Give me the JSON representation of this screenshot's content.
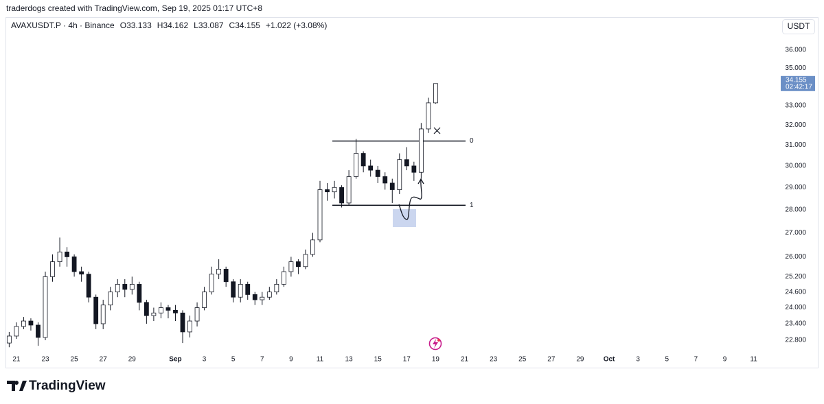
{
  "header": {
    "credit": "traderdogs created with TradingView.com, Sep 19, 2025 01:17 UTC+8",
    "brand": "TradingView"
  },
  "chart_data": {
    "type": "candlestick",
    "symbol": "AVAXUSDT.P · 4h · Binance",
    "open_label": "O",
    "high_label": "H",
    "low_label": "L",
    "close_label": "C",
    "change": "+1.022 (+3.08%)",
    "currency": "USDT",
    "countdown": "02:42:17",
    "up_color": "#ffffff",
    "down_color": "#131722",
    "wick_color": "#131722",
    "last_price_color": "#6b8fc6",
    "log_scale": true,
    "x": [
      -0.5,
      0,
      0.5,
      1,
      1.5,
      2,
      2.5,
      3,
      3.5,
      4,
      4.5,
      5,
      5.5,
      6,
      6.5,
      7,
      7.5,
      8,
      8.5,
      9,
      9.5,
      10,
      10.5,
      11,
      11.5,
      12,
      12.5,
      13,
      13.5,
      14,
      14.5,
      15,
      15.5,
      16,
      16.5,
      17,
      17.5,
      18,
      18.5,
      19,
      19.5,
      20,
      20.5,
      21,
      21.5,
      22,
      22.5,
      23,
      23.5,
      24,
      24.5,
      25,
      25.5,
      26,
      26.5,
      27,
      27.5,
      28,
      28.5,
      29
    ],
    "open": [
      22.7,
      22.95,
      23.3,
      23.5,
      23.35,
      22.9,
      25.2,
      25.8,
      26.2,
      26,
      25.4,
      25.3,
      24.4,
      23.4,
      24.1,
      24.6,
      24.9,
      24.7,
      24.9,
      24.2,
      23.7,
      23.8,
      24,
      23.9,
      23.8,
      23.1,
      23.5,
      24,
      24.6,
      25.3,
      25.5,
      25,
      24.4,
      24.9,
      24.5,
      24.3,
      24.4,
      24.6,
      24.9,
      25.4,
      25.8,
      25.6,
      26.1,
      26.7,
      28.9,
      28.8,
      29,
      28.3,
      29.5,
      30.6,
      30,
      29.8,
      29.5,
      29.2,
      28.9,
      30.3,
      30,
      29.7,
      31.8,
      33.133
    ],
    "high": [
      23.1,
      23.45,
      23.65,
      23.6,
      23.45,
      25.4,
      26.1,
      26.8,
      26.4,
      26.1,
      25.6,
      25.4,
      24.5,
      24.3,
      24.8,
      25.1,
      25.1,
      25.2,
      25,
      24.3,
      24,
      24.2,
      24.1,
      24.1,
      23.9,
      23.7,
      24.2,
      24.8,
      25.6,
      25.9,
      25.6,
      25.1,
      25.1,
      25,
      24.6,
      24.6,
      24.8,
      25.1,
      25.6,
      26,
      25.9,
      26.3,
      27,
      29.3,
      29.2,
      29.3,
      29.1,
      29.8,
      31.3,
      30.7,
      30.3,
      30,
      29.7,
      29.4,
      30.6,
      30.9,
      30.2,
      32.1,
      33.4,
      34.162
    ],
    "low": [
      22.55,
      22.85,
      23.2,
      23.15,
      22.6,
      22.8,
      25,
      25.6,
      25.6,
      25.2,
      25,
      24.2,
      23.2,
      23.2,
      23.9,
      24.4,
      24.4,
      24.5,
      23.9,
      23.4,
      23.5,
      23.6,
      23.6,
      23.5,
      22.7,
      22.9,
      23.3,
      23.9,
      24.5,
      25.1,
      24.8,
      24.2,
      24.2,
      24.3,
      24.1,
      24.1,
      24.3,
      24.5,
      24.8,
      25.2,
      25.3,
      25.5,
      26,
      26.6,
      28.4,
      28.5,
      28.1,
      28.2,
      29.4,
      29.7,
      29.5,
      29.2,
      28.9,
      28.3,
      28.7,
      29.8,
      29.3,
      29.4,
      31.6,
      33.087
    ],
    "close": [
      22.95,
      23.3,
      23.5,
      23.35,
      22.9,
      25.2,
      25.8,
      26.2,
      26,
      25.4,
      25.3,
      24.4,
      23.4,
      24.1,
      24.6,
      24.9,
      24.7,
      24.9,
      24.2,
      23.7,
      23.8,
      24,
      23.9,
      23.8,
      23.1,
      23.5,
      24,
      24.6,
      25.3,
      25.5,
      25,
      24.4,
      24.9,
      24.5,
      24.3,
      24.4,
      24.6,
      24.9,
      25.4,
      25.8,
      25.6,
      26.1,
      26.7,
      28.9,
      28.8,
      29,
      28.3,
      29.5,
      30.6,
      30,
      29.8,
      29.5,
      29.2,
      28.9,
      30.3,
      30,
      29.7,
      31.8,
      33.133,
      34.155
    ],
    "xlim": [
      -0.66,
      52.54
    ],
    "ylim": [
      22.41,
      36.71
    ],
    "xticks": [
      {
        "value": 0,
        "label": "21"
      },
      {
        "value": 2,
        "label": "23"
      },
      {
        "value": 4,
        "label": "25"
      },
      {
        "value": 6,
        "label": "27"
      },
      {
        "value": 8,
        "label": "29"
      },
      {
        "value": 11,
        "label": "Sep"
      },
      {
        "value": 13,
        "label": "3"
      },
      {
        "value": 15,
        "label": "5"
      },
      {
        "value": 17,
        "label": "7"
      },
      {
        "value": 19,
        "label": "9"
      },
      {
        "value": 21,
        "label": "11"
      },
      {
        "value": 23,
        "label": "13"
      },
      {
        "value": 25,
        "label": "15"
      },
      {
        "value": 27,
        "label": "17"
      },
      {
        "value": 29,
        "label": "19"
      },
      {
        "value": 31,
        "label": "21"
      },
      {
        "value": 33,
        "label": "23"
      },
      {
        "value": 35,
        "label": "25"
      },
      {
        "value": 37,
        "label": "27"
      },
      {
        "value": 39,
        "label": "29"
      },
      {
        "value": 41,
        "label": "Oct"
      },
      {
        "value": 43,
        "label": "3"
      },
      {
        "value": 45,
        "label": "5"
      },
      {
        "value": 47,
        "label": "7"
      },
      {
        "value": 49,
        "label": "9"
      },
      {
        "value": 51,
        "label": "11"
      }
    ],
    "yticks": [
      {
        "value": 36,
        "label": "36.000"
      },
      {
        "value": 35,
        "label": "35.000"
      },
      {
        "value": 33,
        "label": "33.000"
      },
      {
        "value": 32,
        "label": "32.000"
      },
      {
        "value": 31,
        "label": "31.000"
      },
      {
        "value": 30,
        "label": "30.000"
      },
      {
        "value": 29,
        "label": "29.000"
      },
      {
        "value": 28,
        "label": "28.000"
      },
      {
        "value": 27,
        "label": "27.000"
      },
      {
        "value": 26,
        "label": "26.000"
      },
      {
        "value": 25.2,
        "label": "25.200"
      },
      {
        "value": 24.6,
        "label": "24.600"
      },
      {
        "value": 24,
        "label": "24.000"
      },
      {
        "value": 23.4,
        "label": "23.400"
      },
      {
        "value": 22.8,
        "label": "22.800"
      }
    ],
    "levels": [
      {
        "label": "0",
        "value": 31.2
      },
      {
        "label": "1",
        "value": 28.2
      }
    ]
  }
}
